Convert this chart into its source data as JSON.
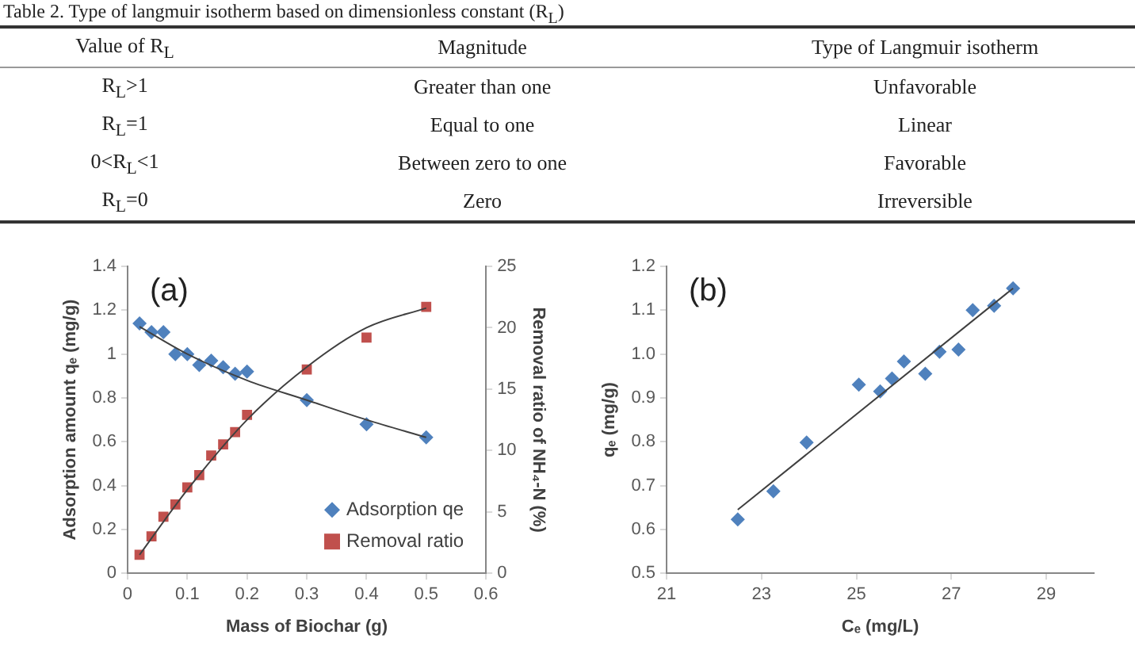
{
  "chart_data": [
    {
      "type": "other",
      "title": "Table 2. Type of langmuir isotherm based on dimensionless constant (R$_{L}$)",
      "annotations": [
        "Value of R$_{L}$",
        "Magnitude",
        "Type of Langmuir isotherm",
        "R$_{L}$>1",
        "Greater than one",
        "Unfavorable",
        "R$_{L}$=1",
        "Equal to one",
        "Linear",
        "0<R$_{L}$<1",
        "Between zero to one",
        "Favorable",
        "R$_{L}$=0",
        "Zero",
        "Irreversible"
      ]
    },
    {
      "type": "scatter",
      "xlabel": "Mass of Biochar (g)",
      "ylabel": "Adsorption amount qₑ (mg/g)",
      "y2label": "Removal ratio of NH₄-N (%)",
      "annotations": [
        "(a)"
      ],
      "xlim": [
        0,
        0.6
      ],
      "xticks": [
        0,
        0.1,
        0.2,
        0.3,
        0.4,
        0.5,
        0.6
      ],
      "ylim": [
        0,
        1.4
      ],
      "yticks": [
        0,
        0.2,
        0.4,
        0.6,
        0.8,
        1,
        1.2,
        1.4
      ],
      "y2lim": [
        0,
        25
      ],
      "y2ticks": [
        0,
        5,
        10,
        15,
        20,
        25
      ],
      "grid": false,
      "legend": "bottom right",
      "series": [
        {
          "name": "Adsorption qe",
          "color": "#4f81bd",
          "marker": "diamond",
          "x": [
            0.02,
            0.04,
            0.06,
            0.08,
            0.1,
            0.12,
            0.14,
            0.16,
            0.18,
            0.2,
            0.3,
            0.4,
            0.5
          ],
          "values": [
            1.14,
            1.1,
            1.1,
            1.0,
            1.0,
            0.95,
            0.97,
            0.94,
            0.91,
            0.92,
            0.79,
            0.68,
            0.62
          ]
        },
        {
          "name": "Removal ratio",
          "color": "#c0504d",
          "marker": "square",
          "axis": "y2",
          "x": [
            0.02,
            0.04,
            0.06,
            0.08,
            0.1,
            0.12,
            0.14,
            0.16,
            0.18,
            0.2,
            0.3,
            0.4,
            0.5
          ],
          "values": [
            1.5,
            3.0,
            4.6,
            5.6,
            7.0,
            8.0,
            9.6,
            10.5,
            11.5,
            12.9,
            16.6,
            19.2,
            21.7
          ]
        },
        {
          "type": "line",
          "color": "#404040",
          "marker": "none",
          "x": [
            0.02,
            0.1,
            0.2,
            0.3,
            0.4,
            0.5
          ],
          "values": [
            1.125,
            1.0,
            0.88,
            0.79,
            0.7,
            0.62
          ]
        },
        {
          "type": "line",
          "color": "#404040",
          "marker": "none",
          "axis": "y2",
          "x": [
            0.02,
            0.1,
            0.2,
            0.3,
            0.4,
            0.5
          ],
          "values": [
            1.5,
            6.8,
            12.5,
            16.8,
            20.0,
            21.6
          ]
        }
      ]
    },
    {
      "type": "scatter",
      "xlabel": "Cₑ (mg/L)",
      "ylabel": "qₑ (mg/g)",
      "annotations": [
        "(b)"
      ],
      "xlim": [
        21,
        30
      ],
      "xticks": [
        21,
        23,
        25,
        27,
        29
      ],
      "ylim": [
        0.5,
        1.2
      ],
      "yticks": [
        0.5,
        0.6,
        0.7,
        0.8,
        0.9,
        {
          "value": 1,
          "label": "1.0"
        },
        1.1,
        1.2
      ],
      "grid": false,
      "series": [
        {
          "color": "#4f81bd",
          "marker": "diamond",
          "x": [
            22.5,
            23.25,
            23.95,
            25.05,
            25.5,
            25.75,
            26.0,
            26.45,
            26.75,
            27.15,
            27.45,
            27.9,
            28.3
          ],
          "values": [
            0.623,
            0.687,
            0.798,
            0.93,
            0.915,
            0.944,
            0.983,
            0.955,
            1.005,
            1.01,
            1.1,
            1.11,
            1.15
          ]
        },
        {
          "type": "line",
          "color": "#404040",
          "marker": "none",
          "x": [
            22.5,
            28.3
          ],
          "values": [
            0.645,
            1.15
          ]
        }
      ]
    }
  ]
}
